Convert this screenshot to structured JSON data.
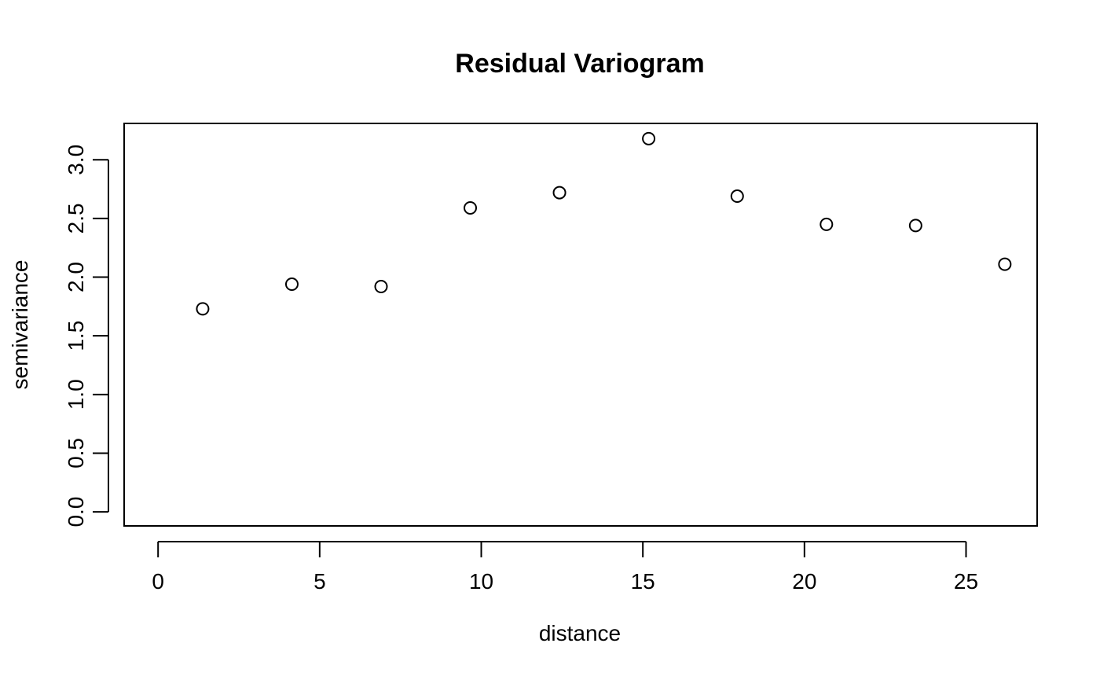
{
  "chart_data": {
    "type": "scatter",
    "title": "Residual Variogram",
    "xlabel": "distance",
    "ylabel": "semivariance",
    "x": [
      1.38,
      4.14,
      6.9,
      9.66,
      12.42,
      15.18,
      17.92,
      20.68,
      23.44,
      26.2
    ],
    "y": [
      1.73,
      1.94,
      1.92,
      2.59,
      2.72,
      3.18,
      2.69,
      2.45,
      2.44,
      2.11
    ],
    "xticks": [
      0,
      5,
      10,
      15,
      20,
      25
    ],
    "xtick_labels": [
      "0",
      "5",
      "10",
      "15",
      "20",
      "25"
    ],
    "yticks": [
      0.0,
      0.5,
      1.0,
      1.5,
      2.0,
      2.5,
      3.0
    ],
    "ytick_labels": [
      "0.0",
      "0.5",
      "1.0",
      "1.5",
      "2.0",
      "2.5",
      "3.0"
    ],
    "xlim": [
      -1.05,
      27.2
    ],
    "ylim": [
      -0.12,
      3.31
    ],
    "grid": false,
    "legend": "none",
    "marker": "open-circle",
    "color": "#000000"
  }
}
